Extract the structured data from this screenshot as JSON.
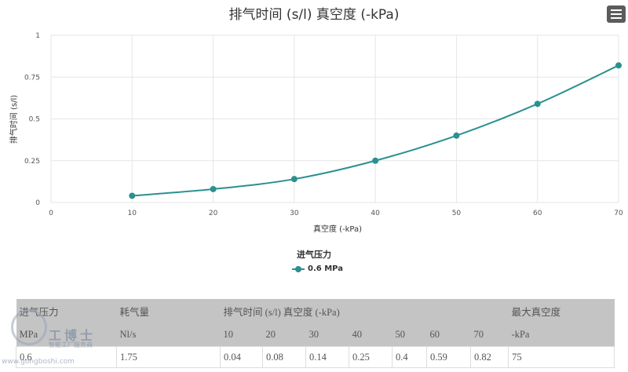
{
  "chart_data": {
    "type": "line",
    "title": "排气时间 (s/l) 真空度 (-kPa)",
    "xlabel": "真空度 (-kPa)",
    "ylabel": "排气时间 (s/l)",
    "x": [
      10,
      20,
      30,
      40,
      50,
      60,
      70
    ],
    "series": [
      {
        "name": "0.6 MPa",
        "values": [
          0.04,
          0.08,
          0.14,
          0.25,
          0.4,
          0.59,
          0.82
        ]
      }
    ],
    "xlim": [
      0,
      70
    ],
    "ylim": [
      0,
      1
    ],
    "x_ticks": [
      "0",
      "10",
      "20",
      "30",
      "40",
      "50",
      "60",
      "70"
    ],
    "y_ticks": [
      "0",
      "0.25",
      "0.5",
      "0.75",
      "1"
    ],
    "grid": true,
    "legend_title": "进气压力",
    "legend_position": "bottom-center",
    "series_color": "#2a9090"
  },
  "table": {
    "header_row1": [
      "进气压力",
      "耗气量",
      "排气时间 (s/l) 真空度 (-kPa)",
      "最大真空度"
    ],
    "header_row2": [
      "MPa",
      "Nl/s",
      "10",
      "20",
      "30",
      "40",
      "50",
      "60",
      "70",
      "-kPa"
    ],
    "rows": [
      [
        "0.6",
        "1.75",
        "0.04",
        "0.08",
        "0.14",
        "0.25",
        "0.4",
        "0.59",
        "0.82",
        "75"
      ]
    ]
  },
  "watermark": {
    "title": "工博士",
    "subtitle": "智能工厂服务商",
    "url": "www.gongboshi.com"
  }
}
